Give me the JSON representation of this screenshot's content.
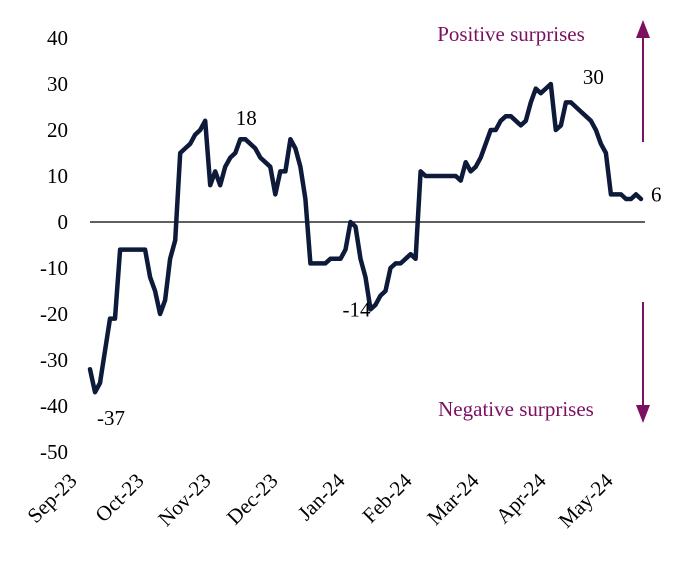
{
  "chart_data": {
    "type": "line",
    "title": "",
    "xlabel": "",
    "ylabel": "",
    "ylim": [
      -50,
      40
    ],
    "yticks": [
      40,
      30,
      20,
      10,
      0,
      -10,
      -20,
      -30,
      -40,
      -50
    ],
    "x_tick_labels": [
      "Sep-23",
      "Oct-23",
      "Nov-23",
      "Dec-23",
      "Jan-24",
      "Feb-24",
      "Mar-24",
      "Apr-24",
      "May-24"
    ],
    "grid": false,
    "line_color": "#0d1a3a",
    "series": [
      {
        "values": [
          -32,
          -37,
          -35,
          -28,
          -21,
          -21,
          -6,
          -6,
          -6,
          -6,
          -6,
          -6,
          -12,
          -15,
          -20,
          -17,
          -8,
          -4,
          15,
          16,
          17,
          19,
          20,
          22,
          8,
          11,
          8,
          12,
          14,
          15,
          18,
          18,
          17,
          16,
          14,
          13,
          12,
          6,
          11,
          11,
          18,
          16,
          12,
          5,
          -9,
          -9,
          -9,
          -9,
          -8,
          -8,
          -8,
          -6,
          0,
          -1,
          -8,
          -12,
          -19,
          -18,
          -16,
          -15,
          -10,
          -9,
          -9,
          -8,
          -7,
          -8,
          11,
          10,
          10,
          10,
          10,
          10,
          10,
          10,
          9,
          13,
          11,
          12,
          14,
          17,
          20,
          20,
          22,
          23,
          23,
          22,
          21,
          22,
          26,
          29,
          28,
          29,
          30,
          20,
          21,
          26,
          26,
          25,
          24,
          23,
          22,
          20,
          17,
          15,
          6,
          6,
          6,
          5,
          5,
          6,
          5
        ]
      }
    ],
    "data_labels": [
      {
        "text": "-37",
        "value": -37
      },
      {
        "text": "18",
        "value": 18
      },
      {
        "text": "-14",
        "value": -14
      },
      {
        "text": "30",
        "value": 30
      },
      {
        "text": "6",
        "value": 6
      }
    ],
    "annotations": {
      "positive": {
        "text": "Positive surprises",
        "color": "#7b1060"
      },
      "negative": {
        "text": "Negative surprises",
        "color": "#7b1060"
      }
    }
  }
}
